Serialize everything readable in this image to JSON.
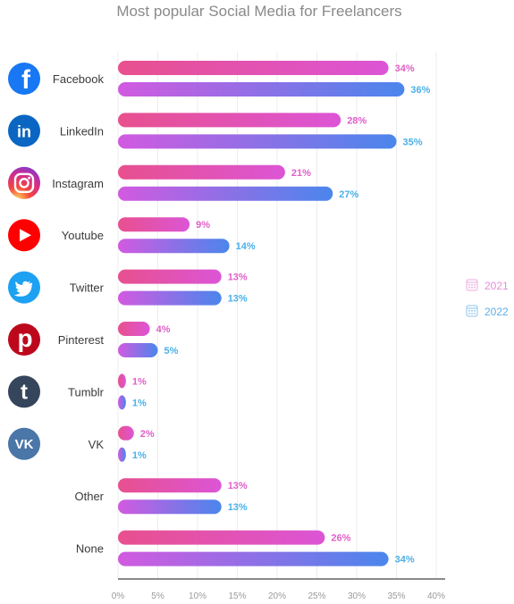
{
  "chart_data": {
    "type": "bar",
    "orientation": "horizontal",
    "title": "Most popular Social Media for Freelancers",
    "categories": [
      "Facebook",
      "LinkedIn",
      "Instagram",
      "Youtube",
      "Twitter",
      "Pinterest",
      "Tumblr",
      "VK",
      "Other",
      "None"
    ],
    "series": [
      {
        "name": "2021",
        "values": [
          34,
          28,
          21,
          9,
          13,
          4,
          1,
          2,
          13,
          26
        ]
      },
      {
        "name": "2022",
        "values": [
          36,
          35,
          27,
          14,
          13,
          5,
          1,
          1,
          13,
          34
        ]
      }
    ],
    "x_ticks": [
      "0%",
      "5%",
      "10%",
      "15%",
      "20%",
      "25%",
      "30%",
      "35%",
      "40%"
    ],
    "xlim": [
      0,
      40
    ],
    "value_suffix": "%",
    "grid": true,
    "legend_position": "right",
    "icons": [
      "facebook-icon",
      "linkedin-icon",
      "instagram-icon",
      "youtube-icon",
      "twitter-icon",
      "pinterest-icon",
      "tumblr-icon",
      "vk-icon",
      null,
      null
    ],
    "colors": {
      "bar_2021_start": "#e8508e",
      "bar_2021_end": "#dc55d6",
      "bar_2022_start": "#d25ae0",
      "bar_2022_end": "#4a86ec",
      "facebook": "#1877f2",
      "linkedin": "#0a66c2",
      "youtube": "#ff0000",
      "twitter": "#1da1f2",
      "pinterest": "#bd081c",
      "tumblr": "#35465c",
      "vk": "#4a76a8"
    }
  }
}
